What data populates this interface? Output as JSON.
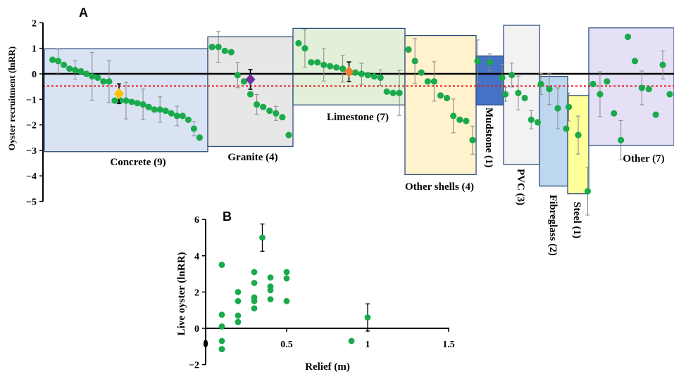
{
  "colors": {
    "dot": "#1aaa4b",
    "axis": "#000000",
    "error_bar": "#888888",
    "reference_line": "#e41a1c"
  },
  "chart_data": [
    {
      "panel": "A",
      "type": "scatter",
      "ylabel": "Oyster recruitment  (lnRR)",
      "ylim": [
        -5,
        2
      ],
      "yticks": [
        "2",
        "1",
        "0",
        "−1",
        "−2",
        "−3",
        "−4",
        "−5"
      ],
      "reference_line_y": -0.48,
      "groups": [
        {
          "name": "Concrete (9)",
          "box_color": "#dae3f3",
          "box_y": [
            -3.05,
            0.98
          ],
          "values": [
            0.55,
            0.5,
            0.35,
            0.2,
            0.15,
            0.1,
            0.0,
            -0.1,
            -0.15,
            -0.3,
            -0.3,
            -1.05,
            -1.05,
            -1.05,
            -1.1,
            -1.15,
            -1.2,
            -1.3,
            -1.4,
            -1.4,
            -1.45,
            -1.55,
            -1.65,
            -1.65,
            -1.8,
            -2.15,
            -2.5
          ],
          "mean": -0.78,
          "mean_color": "#ffc000"
        },
        {
          "name": "Granite (4)",
          "box_color": "#e7e7e7",
          "box_y": [
            -2.85,
            1.45
          ],
          "values": [
            1.05,
            1.05,
            0.9,
            0.85,
            -0.05,
            -0.3,
            -0.8,
            -1.2,
            -1.3,
            -1.45,
            -1.55,
            -1.7,
            -2.4
          ],
          "mean": -0.22,
          "mean_color": "#7030a0"
        },
        {
          "name": "Limestone (7)",
          "box_color": "#e2f0d9",
          "box_y": [
            -1.22,
            1.78
          ],
          "values": [
            1.2,
            1.0,
            0.45,
            0.45,
            0.35,
            0.3,
            0.25,
            0.2,
            0.05,
            0.05,
            0.0,
            -0.05,
            -0.1,
            -0.15,
            -0.7,
            -0.75,
            -0.75
          ],
          "mean": 0.08,
          "mean_color": "#ed7d31"
        },
        {
          "name": "Other shells (4)",
          "box_color": "#fff2cc",
          "box_y": [
            -3.95,
            1.5
          ],
          "values": [
            0.95,
            0.5,
            0.05,
            -0.3,
            -0.3,
            -0.85,
            -0.95,
            -1.65,
            -1.8,
            -1.85,
            -2.6
          ]
        },
        {
          "name": "Mudstone (1)",
          "box_color": "#4472c4",
          "box_y": [
            -1.22,
            0.7
          ],
          "values": [
            0.5,
            0.45,
            -0.15
          ]
        },
        {
          "name": "PVC (3)",
          "box_color": "#f2f2f2",
          "box_y": [
            -3.55,
            1.9
          ],
          "values": [
            -0.8,
            -0.05,
            -0.75,
            -0.95,
            -1.8,
            -1.9
          ]
        },
        {
          "name": "Fibreglass (2)",
          "box_color": "#bdd7ee",
          "box_y": [
            -4.4,
            -0.1
          ],
          "values": [
            -0.4,
            -0.6,
            -1.35,
            -2.15
          ]
        },
        {
          "name": "Steel (1)",
          "box_color": "#ffff99",
          "box_y": [
            -4.7,
            -0.85
          ],
          "values": [
            -1.3,
            -2.4,
            -4.6
          ]
        },
        {
          "name": "Other (7)",
          "box_color": "#e5e0f5",
          "box_y": [
            -2.8,
            1.8
          ],
          "values": [
            -0.4,
            -0.8,
            -0.3,
            -1.55,
            -2.6,
            1.45,
            0.5,
            -0.55,
            -0.6,
            -1.6,
            0.35,
            -0.8
          ]
        }
      ]
    },
    {
      "panel": "B",
      "type": "scatter",
      "xlabel": "Relief (m)",
      "ylabel": "Live oyster (lnRR)",
      "xlim": [
        0,
        1.5
      ],
      "ylim": [
        -2,
        6
      ],
      "xticks": [
        "0",
        "0.5",
        "1",
        "1.5"
      ],
      "yticks": [
        "6",
        "4",
        "2",
        "0",
        "−2"
      ],
      "x": [
        0.1,
        0.1,
        0.1,
        0.1,
        0.1,
        0.1,
        0.2,
        0.2,
        0.2,
        0.2,
        0.3,
        0.3,
        0.3,
        0.3,
        0.3,
        0.35,
        0.4,
        0.4,
        0.4,
        0.4,
        0.5,
        0.5,
        0.5,
        0.9,
        1.0
      ],
      "y": [
        3.5,
        0.75,
        0.1,
        -0.7,
        -1.15,
        -1.15,
        2.0,
        1.5,
        0.7,
        0.35,
        3.1,
        2.5,
        1.7,
        1.5,
        1.1,
        5.0,
        2.8,
        2.3,
        2.1,
        1.6,
        3.1,
        2.75,
        1.5,
        -0.7,
        0.6
      ]
    }
  ]
}
